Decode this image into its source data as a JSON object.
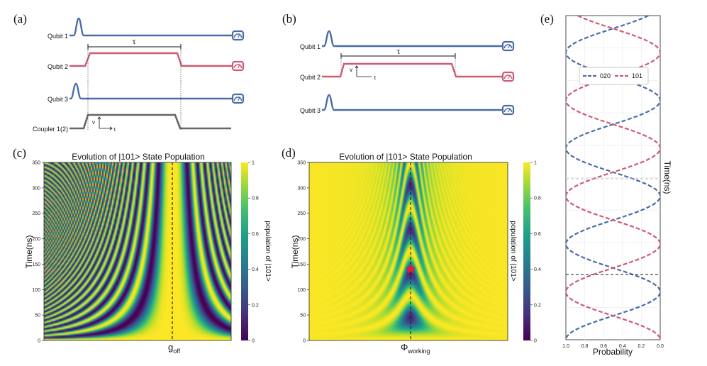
{
  "colors": {
    "blue": "#4a6da7",
    "red": "#cd5c73",
    "grey": "#666666"
  },
  "icons": {
    "measure": "meter-icon"
  },
  "panels": {
    "a": {
      "letter": "(a)",
      "tau": "τ",
      "v": "v",
      "tau_small": "τ",
      "qubits": [
        "Qubit 1",
        "Qubit 2",
        "Qubit 3"
      ],
      "coupler": "Coupler 1(2)"
    },
    "b": {
      "letter": "(b)",
      "tau": "τ",
      "v": "v",
      "tau_small": "τ",
      "qubits": [
        "Qubit 1",
        "Qubit 2",
        "Qubit 3"
      ]
    },
    "c": {
      "letter": "(c)",
      "title": "Evolution of |101> State Population",
      "ylabel": "Time(ns)",
      "xlabel_main": "g",
      "xlabel_sub": "off",
      "cbar_label": "population of |101>"
    },
    "d": {
      "letter": "(d)",
      "title": "Evolution of |101> State Population",
      "ylabel": "Time(ns)",
      "xlabel_main": "Φ",
      "xlabel_sub": "working",
      "cbar_label": "population of |101>"
    },
    "e": {
      "letter": "(e)",
      "ylabel": "Time(ns)",
      "xlabel": "Probability"
    }
  },
  "chart_data": [
    {
      "type": "heatmap",
      "panel": "c",
      "title": "Evolution of |101> State Population",
      "xlabel": "g_off",
      "ylabel": "Time(ns)",
      "ylim": [
        0,
        350
      ],
      "yticks": [
        "0",
        "50",
        "100",
        "150",
        "200",
        "250",
        "300",
        "350"
      ],
      "colorbar": {
        "label": "population of |101>",
        "range": [
          0,
          1
        ],
        "ticks": [
          "0",
          "0.2",
          "0.4",
          "0.6",
          "0.8",
          "1"
        ]
      },
      "marker_line": "g_off (dashed vertical line at center)"
    },
    {
      "type": "heatmap",
      "panel": "d",
      "title": "Evolution of |101> State Population",
      "xlabel": "Φ_working",
      "ylabel": "Time(ns)",
      "ylim": [
        0,
        350
      ],
      "yticks": [
        "0",
        "50",
        "100",
        "150",
        "200",
        "250",
        "300",
        "350"
      ],
      "colorbar": {
        "label": "population of |101>",
        "range": [
          0,
          1
        ],
        "ticks": [
          "0",
          "0.2",
          "0.4",
          "0.6",
          "0.8",
          "1"
        ]
      },
      "marker": {
        "symbol": "star",
        "color": "#e8193c",
        "time_ns": 140
      }
    },
    {
      "type": "line",
      "panel": "e",
      "xlabel": "Probability",
      "ylabel": "Time(ns)",
      "xticks": [
        "1.0",
        "0.8",
        "0.6",
        "0.4",
        "0.2",
        "0.0"
      ],
      "series": [
        {
          "name": "020",
          "color": "#4a6da7",
          "style": "dashed"
        },
        {
          "name": "101",
          "color": "#cd5c73",
          "style": "dashed"
        }
      ]
    }
  ]
}
